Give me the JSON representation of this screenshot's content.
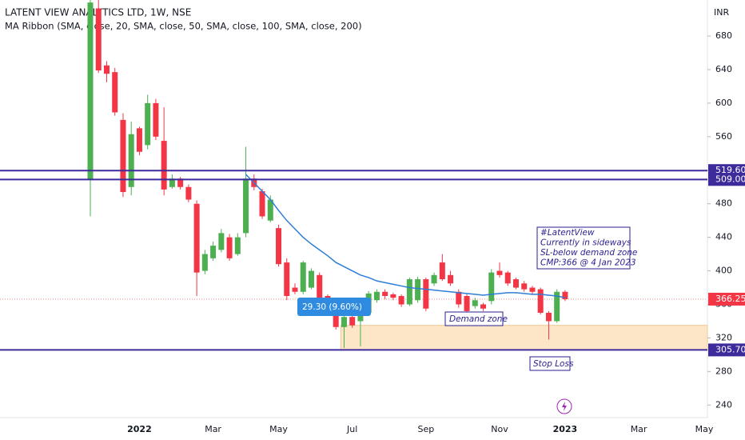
{
  "chart_data": {
    "type": "candlestick",
    "title": "LATENT VIEW ANALYTICS LTD, 1W, NSE",
    "currency": "INR",
    "categories": [
      null,
      null,
      null,
      null,
      null,
      null,
      "2022",
      null,
      null,
      null,
      null,
      null,
      null,
      null,
      null,
      "Mar",
      null,
      null,
      null,
      null,
      null,
      null,
      null,
      "May",
      null,
      null,
      null,
      null,
      null,
      null,
      null,
      null,
      "Jul",
      null,
      null,
      null,
      null,
      null,
      null,
      null,
      null,
      "Sep",
      null,
      null,
      null,
      null,
      null,
      null,
      null,
      null,
      "Nov",
      null,
      null,
      null,
      null,
      null,
      null,
      null,
      "2023",
      null,
      null,
      null,
      null,
      null,
      null,
      null,
      null,
      "Mar",
      null,
      null,
      null,
      null,
      null,
      null,
      null,
      "May"
    ],
    "open": [
      509,
      713,
      645,
      637,
      580,
      500,
      570,
      550,
      600,
      555,
      500,
      510,
      500,
      480,
      400,
      415,
      425,
      440,
      420,
      445,
      510,
      495,
      460,
      451,
      410,
      380,
      375,
      380,
      395,
      370,
      365,
      333,
      345,
      340,
      350,
      365,
      375,
      372,
      370,
      360,
      365,
      390,
      385,
      410,
      395,
      375,
      370,
      358,
      360,
      364,
      400,
      398,
      390,
      385,
      380,
      378,
      350,
      340,
      375,
      null,
      null,
      null,
      null,
      null,
      null,
      null,
      null,
      null,
      null,
      null,
      null,
      null,
      null,
      null,
      null,
      null
    ],
    "high": [
      723,
      723,
      650,
      642,
      588,
      578,
      572,
      610,
      605,
      595,
      515,
      512,
      503,
      484,
      425,
      435,
      450,
      444,
      445,
      548,
      515,
      498,
      490,
      455,
      415,
      385,
      412,
      403,
      398,
      372,
      368,
      350,
      348,
      358,
      376,
      378,
      378,
      374,
      372,
      392,
      393,
      392,
      398,
      420,
      400,
      378,
      372,
      368,
      362,
      402,
      410,
      400,
      392,
      388,
      382,
      380,
      352,
      378,
      377,
      null,
      null,
      null,
      null,
      null,
      null,
      null,
      null,
      null,
      null,
      null,
      null,
      null,
      null,
      null,
      null,
      null
    ],
    "low": [
      465,
      636,
      625,
      585,
      488,
      490,
      538,
      545,
      556,
      490,
      498,
      497,
      482,
      370,
      396,
      412,
      422,
      412,
      418,
      440,
      496,
      462,
      458,
      405,
      365,
      372,
      372,
      378,
      365,
      362,
      330,
      308,
      332,
      310,
      348,
      362,
      366,
      365,
      357,
      358,
      362,
      352,
      382,
      388,
      382,
      356,
      350,
      355,
      352,
      360,
      392,
      382,
      378,
      375,
      372,
      348,
      318,
      338,
      364,
      null,
      null,
      null,
      null,
      null,
      null,
      null,
      null,
      null,
      null,
      null,
      null,
      null,
      null,
      null,
      null,
      null
    ],
    "close": [
      720,
      639,
      635,
      589,
      494,
      563,
      542,
      600,
      560,
      497,
      510,
      500,
      485,
      398,
      420,
      430,
      445,
      415,
      440,
      510,
      500,
      465,
      485,
      408,
      370,
      375,
      410,
      400,
      368,
      365,
      333,
      345,
      335,
      355,
      373,
      375,
      370,
      368,
      360,
      390,
      390,
      355,
      395,
      390,
      385,
      360,
      352,
      365,
      355,
      398,
      395,
      385,
      380,
      378,
      375,
      350,
      340,
      375,
      366.25,
      null,
      null,
      null,
      null,
      null,
      null,
      null,
      null,
      null,
      null,
      null,
      null,
      null,
      null,
      null,
      null,
      null
    ],
    "up_color": "#4caf50",
    "down_color": "#f23645",
    "ma": {
      "name": "MA Ribbon (SMA, close, 20, SMA, close, 50, SMA, close, 100, SMA, close, 200)",
      "color": "#2e7dd7",
      "values": [
        null,
        null,
        null,
        null,
        null,
        null,
        null,
        null,
        null,
        null,
        null,
        null,
        null,
        null,
        null,
        null,
        null,
        null,
        null,
        515,
        505,
        495,
        485,
        472,
        460,
        450,
        440,
        432,
        425,
        418,
        410,
        405,
        400,
        395,
        392,
        388,
        386,
        384,
        382,
        380,
        379,
        378,
        377,
        376,
        375,
        374,
        373,
        372,
        371,
        372,
        373,
        374,
        374,
        373,
        372,
        372,
        371,
        370,
        368,
        null,
        null,
        null,
        null,
        null,
        null,
        null,
        null,
        null,
        null,
        null,
        null,
        null,
        null,
        null,
        null,
        null
      ]
    },
    "ylim": [
      225,
      723
    ],
    "yticks": [
      240,
      280,
      320,
      360,
      400,
      440,
      480,
      520,
      560,
      600,
      640,
      680
    ],
    "levels": [
      {
        "value": 519.6,
        "label": "519.60"
      },
      {
        "value": 509,
        "label": "509.00"
      },
      {
        "value": 305.7,
        "label": "305.70"
      }
    ],
    "level_color": "#3d2b9c",
    "last_price": 366.25,
    "zone": {
      "low": 305.7,
      "high": 335,
      "color": "#fde6c7"
    },
    "notes": [
      "#LatentView",
      "Currently in sideways",
      "SL-below demand zone",
      "CMP:366 @ 4 Jan 2023"
    ],
    "demand_label": "Demand zone",
    "stop_label": "Stop Loss",
    "measure_label": "29.30 (9.60%)"
  }
}
